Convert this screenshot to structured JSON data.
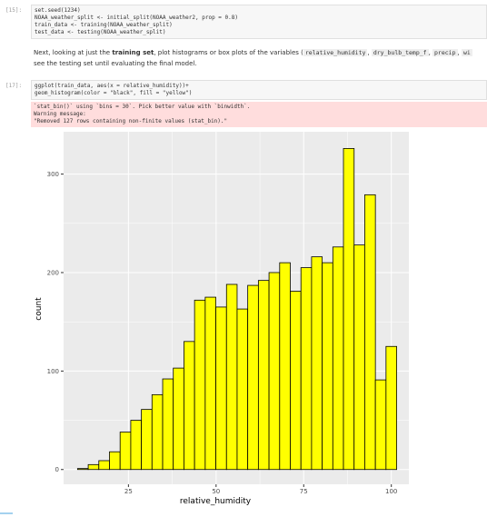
{
  "cells": [
    {
      "prompt": "[15]:",
      "code": [
        "set.seed(1234)",
        "NOAA_weather_split <- initial_split(NOAA_weather2, prop = 0.8)",
        "train_data <- training(NOAA_weather_split)",
        "test_data <- testing(NOAA_weather_split)"
      ]
    },
    {
      "markdown": [
        [
          "Next, looking at just the ",
          "training set",
          ", plot histograms or box plots of the variables (",
          "relative_humidity",
          ", ",
          "dry_bulb_temp_f",
          ", ",
          "precip",
          ", ",
          "wi"
        ],
        [
          "see the testing set until evaluating the final model."
        ]
      ]
    },
    {
      "prompt": "[17]:",
      "code": [
        "ggplot(train_data, aes(x = relative_humidity))+",
        "geom_histogram(color = \"black\", fill = \"yellow\")"
      ],
      "stderr": [
        "`stat_bin()` using `bins = 30`. Pick better value with `binwidth`.",
        "Warning message:",
        "\"Removed 127 rows containing non-finite values (stat_bin).\""
      ]
    }
  ],
  "chart_data": {
    "type": "histogram",
    "x_label": "relative_humidity",
    "y_label": "count",
    "bins": [
      10.48,
      13.52,
      16.55,
      19.59,
      22.62,
      25.66,
      28.69,
      31.72,
      34.76,
      37.79,
      40.83,
      43.86,
      46.9,
      49.93,
      52.97,
      56.0,
      59.03,
      62.07,
      65.1,
      68.14,
      71.17,
      74.21,
      77.24,
      80.28,
      83.31,
      86.34,
      89.38,
      92.41,
      95.45,
      98.48,
      101.52
    ],
    "values": [
      1,
      5,
      9,
      18,
      38,
      50,
      61,
      76,
      92,
      103,
      130,
      172,
      175,
      165,
      188,
      163,
      187,
      192,
      200,
      210,
      181,
      205,
      216,
      210,
      226,
      326,
      228,
      279,
      91,
      125
    ],
    "color": "#ffff00",
    "edge_color": "#000000",
    "xlim": [
      6.5,
      105
    ],
    "ylim": [
      -15,
      343
    ],
    "xticks": [
      25,
      50,
      75,
      100
    ],
    "yticks": [
      0,
      100,
      200,
      300
    ],
    "grid": true
  }
}
